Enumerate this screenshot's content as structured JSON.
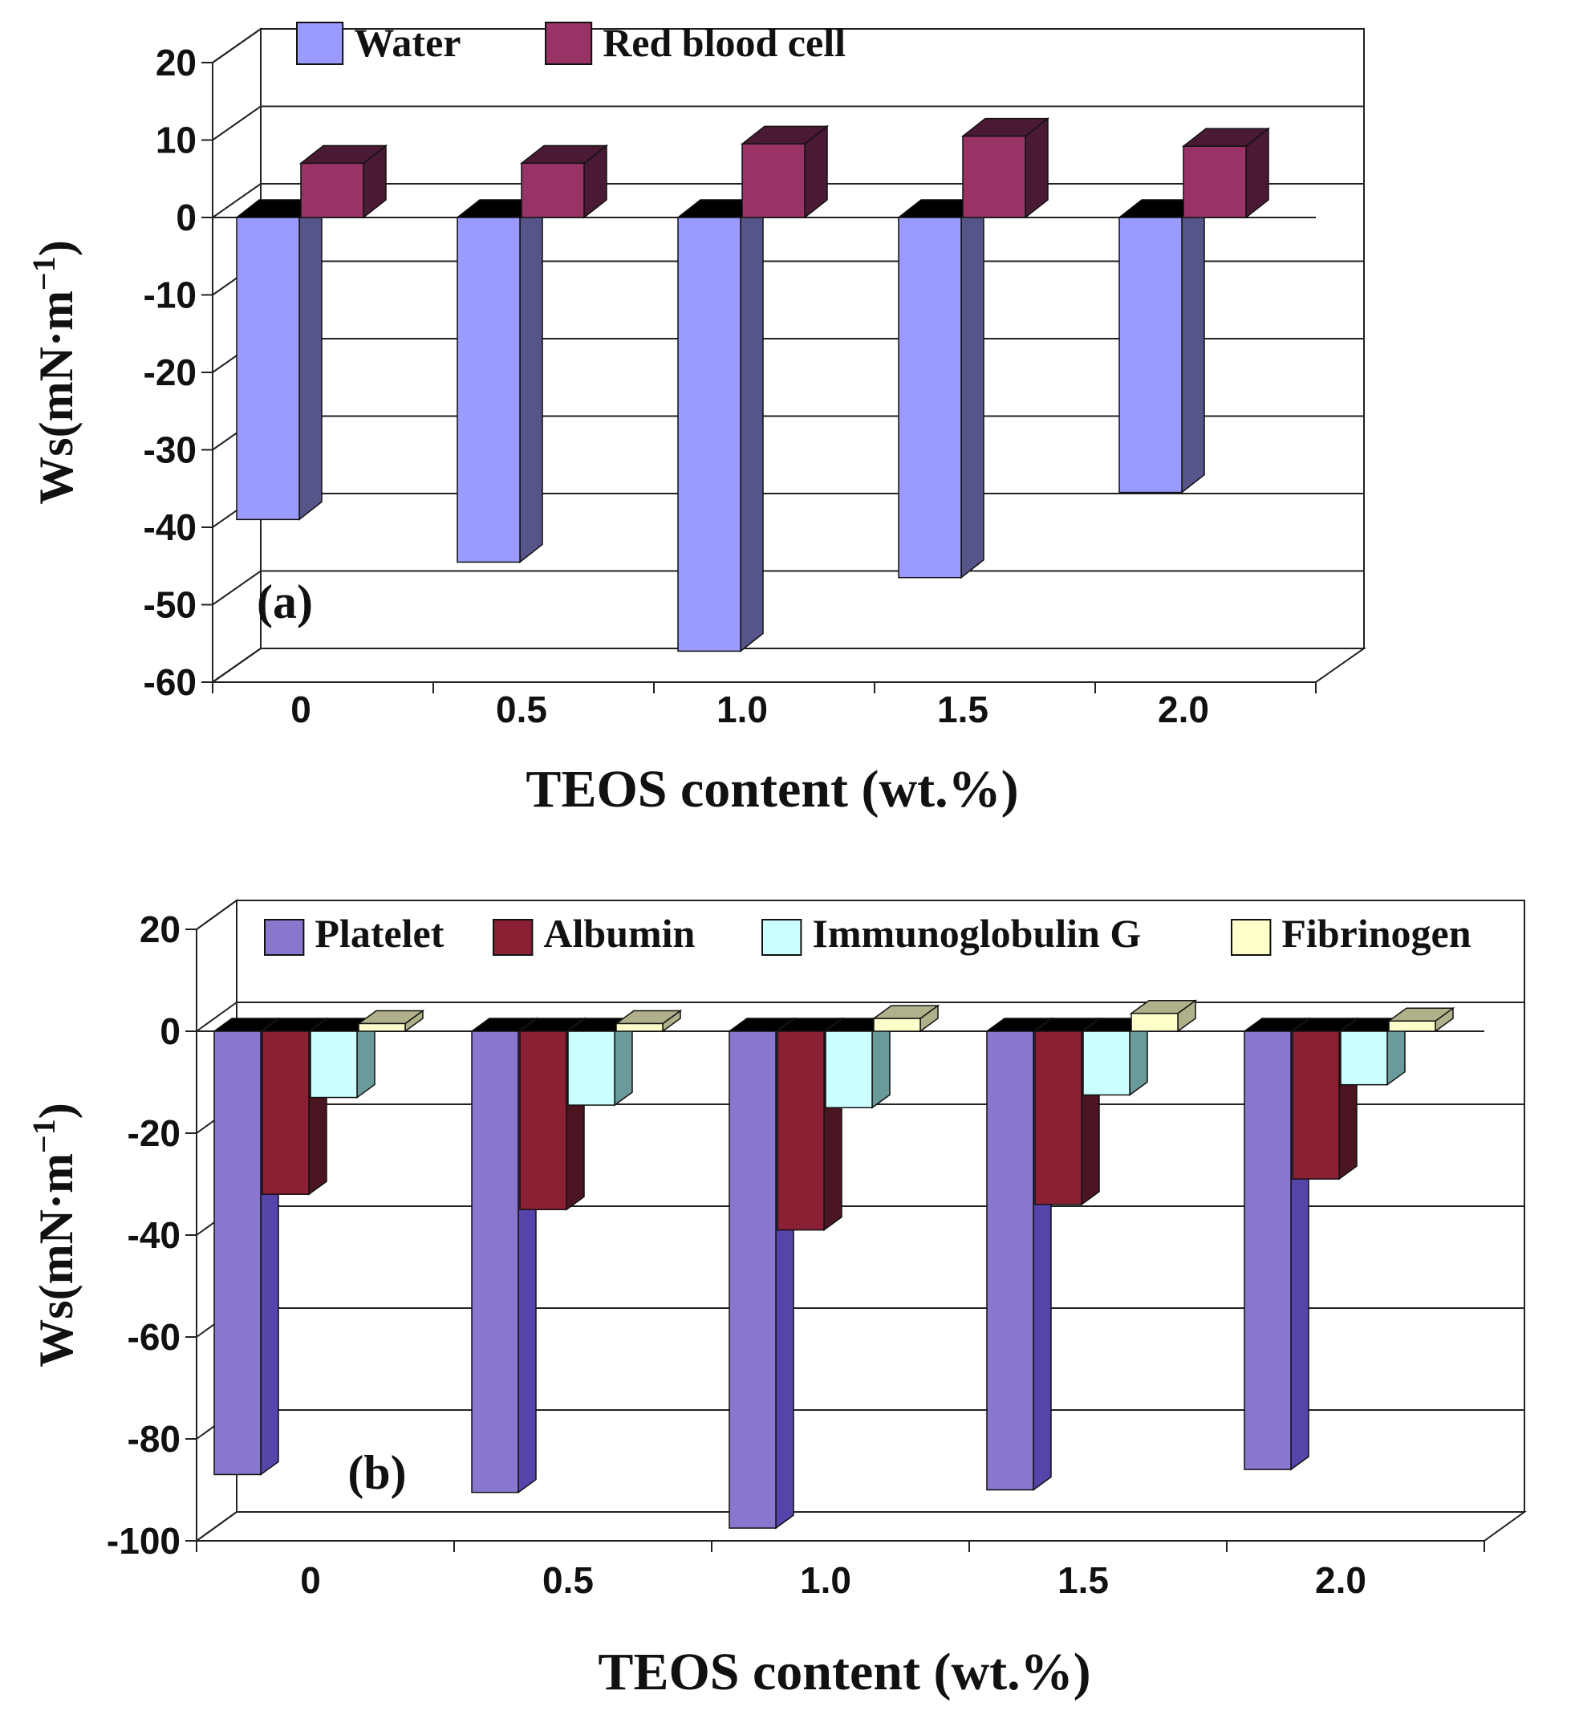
{
  "chart_data": [
    {
      "type": "bar",
      "panel_label": "(a)",
      "categories": [
        "0",
        "0.5",
        "1.0",
        "1.5",
        "2.0"
      ],
      "series": [
        {
          "name": "Water",
          "values": [
            -39,
            -44.5,
            -56,
            -46.5,
            -35.5
          ],
          "color": "#9a9aff",
          "side": "#55558a"
        },
        {
          "name": "Red blood cell",
          "values": [
            7,
            7,
            9.5,
            10.5,
            9.2
          ],
          "color": "#993366",
          "side": "#4a1a34"
        }
      ],
      "xlabel": "TEOS content (wt.%)",
      "ylabel_main": "Ws",
      "ylabel_unit": "(mN·m",
      "ylabel_exp": "−1",
      "ylabel_close": ")",
      "ylim": [
        -60,
        20
      ],
      "yticks": [
        "20",
        "10",
        "0",
        "-10",
        "-20",
        "-30",
        "-40",
        "-50",
        "-60"
      ],
      "legend": [
        "Water",
        "Red blood cell"
      ]
    },
    {
      "type": "bar",
      "panel_label": "(b)",
      "categories": [
        "0",
        "0.5",
        "1.0",
        "1.5",
        "2.0"
      ],
      "series": [
        {
          "name": "Platelet",
          "values": [
            -87,
            -90.5,
            -97.5,
            -90,
            -86
          ],
          "color": "#8877cc",
          "side": "#5544aa"
        },
        {
          "name": "Albumin",
          "values": [
            -32,
            -35,
            -39,
            -34,
            -29
          ],
          "color": "#8b2035",
          "side": "#4a1520"
        },
        {
          "name": "Immunoglobulin G",
          "values": [
            -13,
            -14.5,
            -15,
            -12.5,
            -10.5
          ],
          "color": "#ccffff",
          "side": "#6a9a9a"
        },
        {
          "name": "Fibrinogen",
          "values": [
            1.5,
            1.5,
            2.5,
            3.5,
            2
          ],
          "color": "#ffffcc",
          "side": "#b0b08a"
        }
      ],
      "xlabel": "TEOS content (wt.%)",
      "ylabel_main": "Ws",
      "ylabel_unit": "(mN·m",
      "ylabel_exp": "−1",
      "ylabel_close": ")",
      "ylim": [
        -100,
        20
      ],
      "yticks": [
        "20",
        "0",
        "-20",
        "-40",
        "-60",
        "-80",
        "-100"
      ],
      "legend": [
        "Platelet",
        "Albumin",
        "Immunoglobulin G",
        "Fibrinogen"
      ]
    }
  ]
}
